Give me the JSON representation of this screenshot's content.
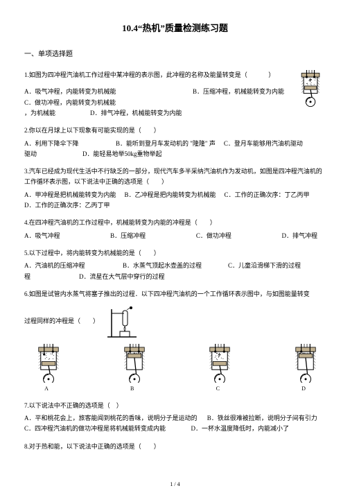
{
  "title": "10.4“热机”质量检测练习题",
  "section1": "一、单项选择题",
  "q1": {
    "stem": "1.如图为四冲程汽油机工作过程中某冲程的表示图，此冲程的名称及能量转变是（",
    "stem_end": "）",
    "optA": "A．吸气冲程，内能转变为机械能",
    "optB": "B．压缩冲程，机械能转变为内能",
    "optC": "C．做功冲程，内能转变为机械能",
    "optD_pre": "，为机械能",
    "optD": "D．排气冲程，机械能转变为内能"
  },
  "q2": {
    "stem": "2.你以在月球上以下现象有可能实现的是（　　）",
    "optA": "A．利用下降伞下降",
    "optB": "B．能听到登月车发动机的   \"隆隆\"    声",
    "optC": "C．登月车能够用汽油机驱动",
    "optD": "D．能轻易地举50kg重物举起"
  },
  "q3": {
    "stem": "3.汽车已经成为现代生活中不行缺乏的一部分，现代汽车多半采纳汽油机作为发动机，如图是四冲程汽油机的工作循环表示图，以下说法中正确的选项是（　　）",
    "optA": "A．甲冲程是把机械能转变为内能",
    "optB": "B．乙冲程是把内能转变为机械能",
    "optC": "C．工作的正确次序：丁乙丙甲",
    "optD": "D．工作的正确次序：乙丙丁甲"
  },
  "q4": {
    "stem": "4.在四冲程汽油机的工作过程中，机械能转变为内能的冲程是（　　）",
    "optA": "A．吸气冲程",
    "optB": "B．压缩冲程",
    "optC": "C．做功冲程",
    "optD": "D．排气冲程"
  },
  "q5": {
    "stem": "5.以下过程中，将内能转变为机械能的是（　　）",
    "optA": "A．汽油机的压缩冲程",
    "optB": "B．水蒸气顶起水壶盖的过程",
    "optC": "C．儿童沿滑梯下滑的过程",
    "optD_pre": "程",
    "optD": "D．流星在大气层中穿行的过程"
  },
  "q6": {
    "stem1": "6.如图是试管内水蒸气将塞子推出的过程．以下四冲程汽油机的一个工作循环表示图中，与如图能量转变",
    "stem2": "过程同样的冲程是（　　）",
    "labA": "A",
    "labB": "B",
    "labC": "C",
    "labD": "D"
  },
  "q7": {
    "stem": "7.以下说法中不正确的选项是（　）",
    "optA": "A．平和桃花会上，旅客能闻到桃花的香味，说明分子是运动的",
    "optB": "B．铁丝很难被拉断，说明分子间有引力",
    "optC": "C．四冲程汽油机的做功冲程是将机械能转变成内能",
    "optD": "D．一杯水温度降低时，内能减小了"
  },
  "q8": {
    "stem": "8.对于热和能，以下说法中正确的选项是（　　）"
  },
  "pagenum": "1 / 4",
  "svg": {
    "engine_stroke": "#000000",
    "engine_fill": "#c0b090",
    "engine_bg": "#ffffff"
  }
}
